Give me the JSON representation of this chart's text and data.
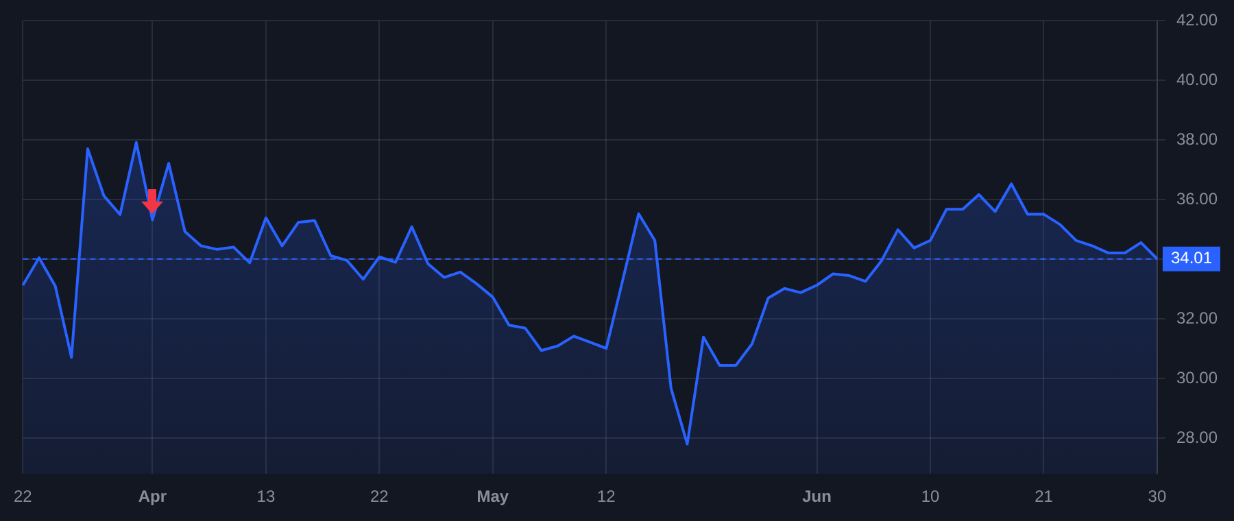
{
  "chart_data": {
    "type": "area",
    "categories": [
      "22",
      null,
      null,
      null,
      null,
      null,
      null,
      null,
      "Apr",
      null,
      null,
      null,
      null,
      null,
      null,
      "13",
      null,
      null,
      null,
      null,
      null,
      null,
      "22",
      null,
      null,
      null,
      null,
      null,
      null,
      "May",
      null,
      null,
      null,
      null,
      null,
      null,
      "12",
      null,
      null,
      null,
      null,
      null,
      null,
      null,
      null,
      null,
      null,
      null,
      null,
      "Jun",
      null,
      null,
      null,
      null,
      null,
      null,
      "10",
      null,
      null,
      null,
      null,
      null,
      null,
      "21",
      null,
      null,
      null,
      null,
      null,
      null,
      "30"
    ],
    "series": [
      {
        "color": "#2962ff",
        "values": [
          33.13,
          34.05,
          33.1,
          30.71,
          37.71,
          36.13,
          35.5,
          37.92,
          35.32,
          37.22,
          34.93,
          34.45,
          34.33,
          34.41,
          33.88,
          35.39,
          34.45,
          35.24,
          35.3,
          34.12,
          33.96,
          33.33,
          34.08,
          33.9,
          35.09,
          33.85,
          33.39,
          33.57,
          33.18,
          32.73,
          31.79,
          31.69,
          30.94,
          31.09,
          31.42,
          31.22,
          31.01,
          33.26,
          35.53,
          34.63,
          29.67,
          27.8,
          31.39,
          30.44,
          30.44,
          31.16,
          32.7,
          33.02,
          32.88,
          33.13,
          33.51,
          33.45,
          33.26,
          33.96,
          34.99,
          34.38,
          34.63,
          35.68,
          35.68,
          36.17,
          35.6,
          36.53,
          35.51,
          35.51,
          35.17,
          34.63,
          34.45,
          34.21,
          34.21,
          34.56,
          34.01
        ]
      }
    ],
    "ylim": [
      26.8,
      42
    ],
    "yticks": [
      {
        "value": 28,
        "label": "28.00"
      },
      {
        "value": 30,
        "label": "30.00"
      },
      {
        "value": 32,
        "label": "32.00"
      },
      {
        "value": 34,
        "label": null
      },
      {
        "value": 36,
        "label": "36.00"
      },
      {
        "value": 38,
        "label": "38.00"
      },
      {
        "value": 40,
        "label": "40.00"
      },
      {
        "value": 42,
        "label": "42.00"
      }
    ],
    "ref_lines": [
      {
        "axis": "y",
        "value": 34.01,
        "label": "34.01",
        "color": "#2962ff",
        "line_style": "dashed"
      }
    ],
    "grid": true,
    "legend": false,
    "marker": "none"
  }
}
